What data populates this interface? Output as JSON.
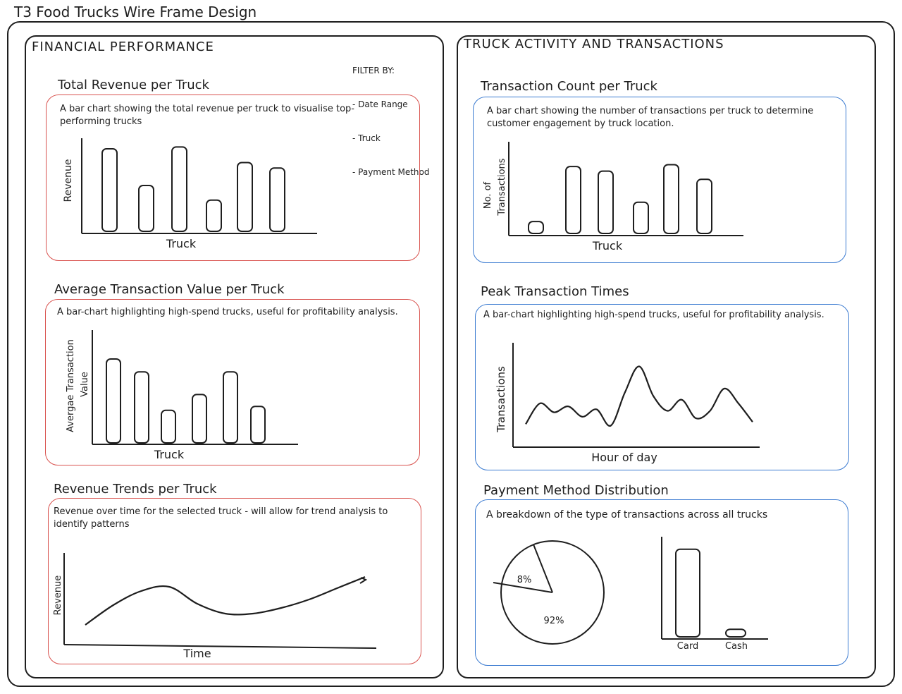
{
  "doc_title": "T3 Food Trucks Wire Frame Design",
  "left_panel": {
    "title": "FINANCIAL PERFORMANCE",
    "filter": {
      "heading": "FILTER BY:",
      "items": [
        "- Date Range",
        "- Truck",
        "- Payment Method"
      ]
    }
  },
  "right_panel": {
    "title": "TRUCK ACTIVITY AND TRANSACTIONS"
  },
  "charts": {
    "total_revenue": {
      "title": "Total Revenue per Truck",
      "desc": "A bar chart showing the total revenue per truck to visualise top-performing trucks",
      "xlabel": "Truck",
      "ylabel": "Revenue"
    },
    "avg_transaction": {
      "title": "Average Transaction Value per Truck",
      "desc": "A bar-chart highlighting high-spend trucks, useful for profitability analysis.",
      "xlabel": "Truck",
      "ylabel_line1": "Avergae Transaction",
      "ylabel_line2": "Value"
    },
    "revenue_trends": {
      "title": "Revenue Trends per Truck",
      "desc": "Revenue over time for the selected truck - will allow for trend analysis to identify patterns",
      "xlabel": "Time",
      "ylabel": "Revenue"
    },
    "transaction_count": {
      "title": "Transaction Count per Truck",
      "desc": "A bar chart showing the number of transactions per truck to determine customer engagement by truck location.",
      "xlabel": "Truck",
      "ylabel_line1": "No. of",
      "ylabel_line2": "Transactions"
    },
    "peak_times": {
      "title": "Peak Transaction Times",
      "desc": "A bar-chart highlighting high-spend trucks, useful for profitability analysis.",
      "xlabel": "Hour of day",
      "ylabel": "Transactions"
    },
    "payment_method": {
      "title": "Payment Method Distribution",
      "desc": "A breakdown of the type of transactions across all trucks",
      "pie_small_label": "8%",
      "pie_large_label": "92%",
      "bar_labels": [
        "Card",
        "Cash"
      ]
    }
  },
  "colors": {
    "ink": "#1e1e1e",
    "left_cards": "#d9534f",
    "right_cards": "#3b7bd1"
  },
  "chart_data": [
    {
      "type": "bar",
      "ref": "total_revenue",
      "categories": [
        "1",
        "2",
        "3",
        "4",
        "5",
        "6"
      ],
      "values": [
        90,
        50,
        92,
        34,
        75,
        69
      ],
      "ylim": [
        0,
        100
      ]
    },
    {
      "type": "bar",
      "ref": "avg_transaction",
      "categories": [
        "1",
        "2",
        "3",
        "4",
        "5",
        "6"
      ],
      "values": [
        85,
        72,
        33,
        49,
        72,
        37
      ],
      "ylim": [
        0,
        100
      ]
    },
    {
      "type": "line",
      "ref": "revenue_trends",
      "x": [
        0,
        1,
        2,
        3,
        4,
        5,
        6,
        7,
        8,
        9,
        10
      ],
      "values": [
        10,
        24,
        34,
        37,
        25,
        18,
        18,
        22,
        28,
        36,
        44
      ],
      "ylim": [
        0,
        60
      ]
    },
    {
      "type": "bar",
      "ref": "transaction_count",
      "categories": [
        "1",
        "2",
        "3",
        "4",
        "5",
        "6"
      ],
      "values": [
        13,
        73,
        68,
        34,
        75,
        59
      ],
      "ylim": [
        0,
        100
      ]
    },
    {
      "type": "line",
      "ref": "peak_times",
      "x": [
        0,
        1,
        2,
        3,
        4,
        5,
        6,
        7,
        8,
        9,
        10,
        11,
        12,
        13,
        14,
        15,
        16
      ],
      "values": [
        12,
        40,
        28,
        36,
        22,
        32,
        10,
        55,
        90,
        50,
        30,
        45,
        20,
        30,
        60,
        40,
        15
      ],
      "ylim": [
        0,
        100
      ]
    },
    {
      "type": "pie",
      "ref": "payment_method",
      "labels": [
        "8%",
        "92%"
      ],
      "values": [
        8,
        92
      ]
    },
    {
      "type": "bar",
      "ref": "payment_method",
      "categories": [
        "Card",
        "Cash"
      ],
      "values": [
        92,
        8
      ],
      "ylim": [
        0,
        100
      ]
    }
  ]
}
